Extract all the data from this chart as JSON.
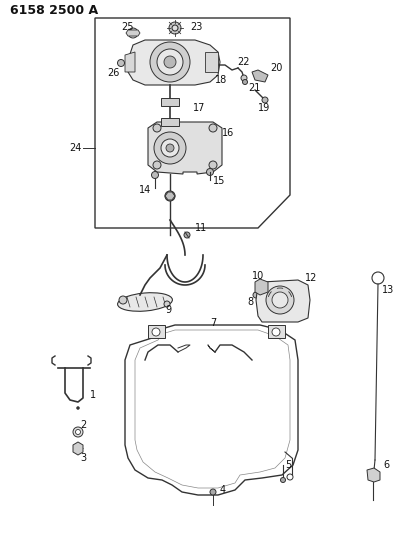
{
  "title": "6158 2500 A",
  "bg_color": "#ffffff",
  "line_color": "#333333",
  "text_color": "#111111",
  "title_fontsize": 9,
  "label_fontsize": 7,
  "figsize": [
    4.1,
    5.33
  ],
  "dpi": 100
}
